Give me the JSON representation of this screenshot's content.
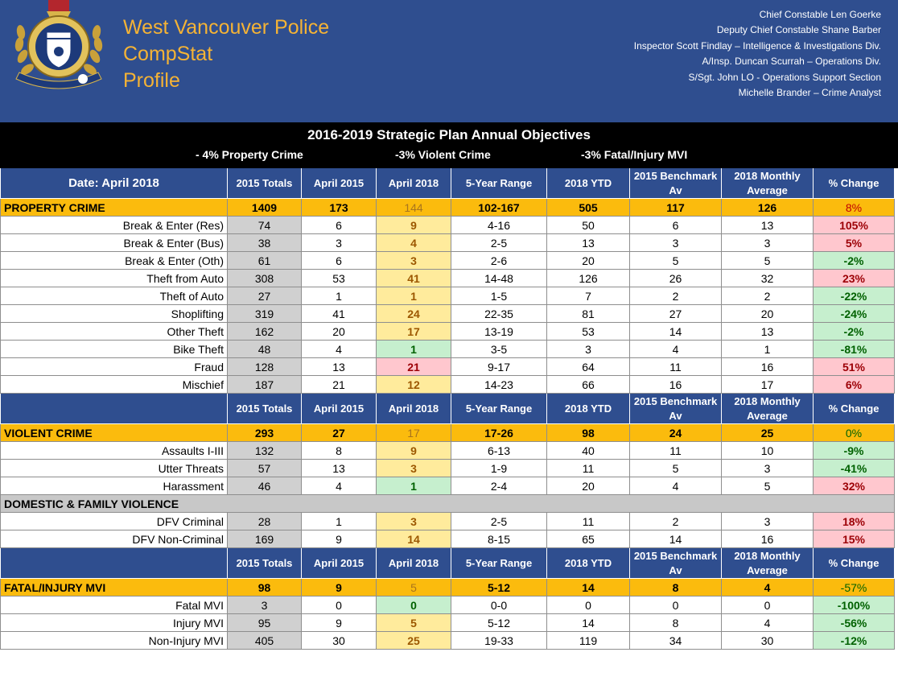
{
  "header": {
    "title_lines": [
      "West Vancouver Police",
      "CompStat",
      "Profile"
    ],
    "staff": [
      "Chief Constable Len Goerke",
      "Deputy Chief Constable Shane Barber",
      "Inspector Scott Findlay – Intelligence & Investigations Div.",
      "A/Insp. Duncan Scurrah – Operations Div.",
      "S/Sgt. John LO - Operations Support Section",
      "Michelle Brander – Crime Analyst"
    ],
    "crest_text": "WEST VANCOUVER POLICE"
  },
  "objectives": {
    "title": "2016-2019 Strategic Plan Annual Objectives",
    "items": [
      "- 4% Property Crime",
      "-3% Violent Crime",
      "-3% Fatal/Injury MVI"
    ]
  },
  "table": {
    "date_label": "Date: April 2018",
    "columns": [
      "2015 Totals",
      "April 2015",
      "April 2018",
      "5-Year Range",
      "2018 YTD",
      "2015 Benchmark Av",
      "2018 Monthly Average",
      "% Change"
    ],
    "sections": [
      {
        "category": {
          "label": "PROPERTY CRIME",
          "values": [
            "1409",
            "173",
            "144",
            "102-167",
            "505",
            "117",
            "126",
            "8%"
          ],
          "pct_dir": "neg"
        },
        "rows": [
          {
            "label": "Break & Enter (Res)",
            "values": [
              "74",
              "6",
              "9",
              "4-16",
              "50",
              "6",
              "13",
              "105%"
            ],
            "a": "y",
            "p": "r"
          },
          {
            "label": "Break & Enter (Bus)",
            "values": [
              "38",
              "3",
              "4",
              "2-5",
              "13",
              "3",
              "3",
              "5%"
            ],
            "a": "y",
            "p": "r"
          },
          {
            "label": "Break & Enter (Oth)",
            "values": [
              "61",
              "6",
              "3",
              "2-6",
              "20",
              "5",
              "5",
              "-2%"
            ],
            "a": "y",
            "p": "g"
          },
          {
            "label": "Theft from Auto",
            "values": [
              "308",
              "53",
              "41",
              "14-48",
              "126",
              "26",
              "32",
              "23%"
            ],
            "a": "y",
            "p": "r"
          },
          {
            "label": "Theft of Auto",
            "values": [
              "27",
              "1",
              "1",
              "1-5",
              "7",
              "2",
              "2",
              "-22%"
            ],
            "a": "y",
            "p": "g"
          },
          {
            "label": "Shoplifting",
            "values": [
              "319",
              "41",
              "24",
              "22-35",
              "81",
              "27",
              "20",
              "-24%"
            ],
            "a": "y",
            "p": "g"
          },
          {
            "label": "Other Theft",
            "values": [
              "162",
              "20",
              "17",
              "13-19",
              "53",
              "14",
              "13",
              "-2%"
            ],
            "a": "y",
            "p": "g"
          },
          {
            "label": "Bike Theft",
            "values": [
              "48",
              "4",
              "1",
              "3-5",
              "3",
              "4",
              "1",
              "-81%"
            ],
            "a": "g",
            "p": "g"
          },
          {
            "label": "Fraud",
            "values": [
              "128",
              "13",
              "21",
              "9-17",
              "64",
              "11",
              "16",
              "51%"
            ],
            "a": "r",
            "p": "r"
          },
          {
            "label": "Mischief",
            "values": [
              "187",
              "21",
              "12",
              "14-23",
              "66",
              "16",
              "17",
              "6%"
            ],
            "a": "y",
            "p": "r"
          }
        ]
      },
      {
        "category": {
          "label": "VIOLENT CRIME",
          "values": [
            "293",
            "27",
            "17",
            "17-26",
            "98",
            "24",
            "25",
            "0%"
          ],
          "pct_dir": "pos"
        },
        "rows": [
          {
            "label": "Assaults I-III",
            "values": [
              "132",
              "8",
              "9",
              "6-13",
              "40",
              "11",
              "10",
              "-9%"
            ],
            "a": "y",
            "p": "g"
          },
          {
            "label": "Utter Threats",
            "values": [
              "57",
              "13",
              "3",
              "1-9",
              "11",
              "5",
              "3",
              "-41%"
            ],
            "a": "y",
            "p": "g"
          },
          {
            "label": "Harassment",
            "values": [
              "46",
              "4",
              "1",
              "2-4",
              "20",
              "4",
              "5",
              "32%"
            ],
            "a": "g",
            "p": "r"
          }
        ],
        "subsection": {
          "label": "DOMESTIC & FAMILY VIOLENCE",
          "rows": [
            {
              "label": "DFV Criminal",
              "values": [
                "28",
                "1",
                "3",
                "2-5",
                "11",
                "2",
                "3",
                "18%"
              ],
              "a": "y",
              "p": "r"
            },
            {
              "label": "DFV Non-Criminal",
              "values": [
                "169",
                "9",
                "14",
                "8-15",
                "65",
                "14",
                "16",
                "15%"
              ],
              "a": "y",
              "p": "r"
            }
          ]
        }
      },
      {
        "category": {
          "label": "FATAL/INJURY MVI",
          "values": [
            "98",
            "9",
            "5",
            "5-12",
            "14",
            "8",
            "4",
            "-57%"
          ],
          "pct_dir": "pos"
        },
        "rows": [
          {
            "label": "Fatal MVI",
            "values": [
              "3",
              "0",
              "0",
              "0-0",
              "0",
              "0",
              "0",
              "-100%"
            ],
            "a": "g",
            "p": "g"
          },
          {
            "label": "Injury MVI",
            "values": [
              "95",
              "9",
              "5",
              "5-12",
              "14",
              "8",
              "4",
              "-56%"
            ],
            "a": "y",
            "p": "g"
          },
          {
            "label": "Non-Injury MVI",
            "values": [
              "405",
              "30",
              "25",
              "19-33",
              "119",
              "34",
              "30",
              "-12%"
            ],
            "a": "y",
            "p": "g"
          }
        ]
      }
    ]
  }
}
